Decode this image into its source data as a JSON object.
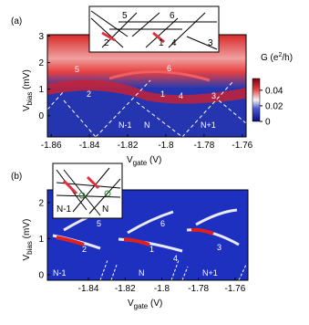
{
  "panels": [
    {
      "label": "(a)",
      "xlabel": {
        "main": "V",
        "sub": "gate",
        "unit": " (V)"
      },
      "ylabel": {
        "main": "V",
        "sub": "bias",
        "unit": " (mV)"
      },
      "xlim": [
        -1.862,
        -1.758
      ],
      "xticks": [
        -1.86,
        -1.84,
        -1.82,
        -1.8,
        -1.78,
        -1.76
      ],
      "ylim": [
        -0.8,
        3.05
      ],
      "yticks": [
        0,
        1,
        2,
        3
      ],
      "regions": [
        "N-1",
        "N",
        "N+1"
      ],
      "lines": [
        "1",
        "2",
        "3",
        "4",
        "5",
        "6"
      ],
      "inset_labels": [
        "2",
        "5",
        "1",
        "6",
        "4",
        "3"
      ],
      "colorbar": {
        "label": {
          "main": "G (e",
          "sup": "2",
          "unit": "/h)"
        },
        "lim": [
          0,
          0.055
        ],
        "ticks": [
          0,
          0.02,
          0.04
        ]
      }
    },
    {
      "label": "(b)",
      "xlabel": {
        "main": "V",
        "sub": "gate",
        "unit": " (V)"
      },
      "ylabel": {
        "main": "V",
        "sub": "bias",
        "unit": " (mV)"
      },
      "xlim": [
        -1.8624,
        -1.753
      ],
      "xticks": [
        -1.84,
        -1.82,
        -1.8,
        -1.78,
        -1.76
      ],
      "ylim": [
        -0.15,
        2.35
      ],
      "yticks": [
        0,
        1,
        2
      ],
      "regions": [
        "N-1",
        "N",
        "N+1"
      ],
      "lines": [
        "1",
        "2",
        "3",
        "4",
        "5",
        "6"
      ],
      "inset_labels": [
        "N-1",
        "N"
      ]
    }
  ]
}
